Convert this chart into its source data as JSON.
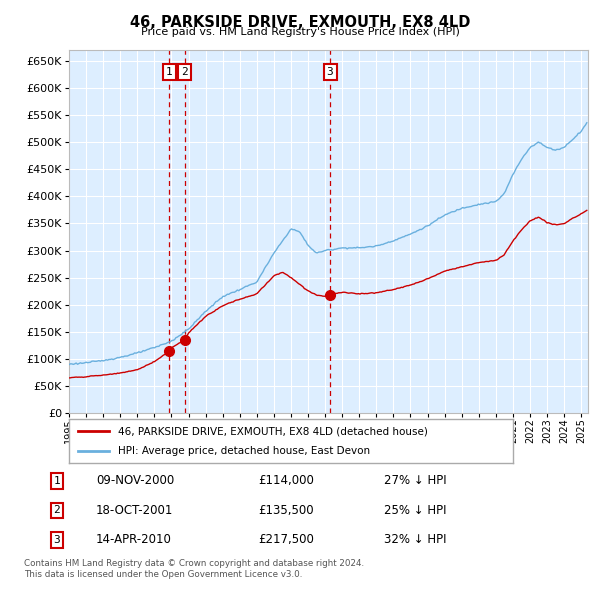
{
  "title": "46, PARKSIDE DRIVE, EXMOUTH, EX8 4LD",
  "subtitle": "Price paid vs. HM Land Registry's House Price Index (HPI)",
  "legend_line1": "46, PARKSIDE DRIVE, EXMOUTH, EX8 4LD (detached house)",
  "legend_line2": "HPI: Average price, detached house, East Devon",
  "footnote1": "Contains HM Land Registry data © Crown copyright and database right 2024.",
  "footnote2": "This data is licensed under the Open Government Licence v3.0.",
  "hpi_color": "#6ab0de",
  "price_color": "#cc0000",
  "vline_color": "#cc0000",
  "dot_color": "#cc0000",
  "plot_bg": "#ddeeff",
  "grid_color": "#ffffff",
  "box_color": "#cc0000",
  "ylim": [
    0,
    670000
  ],
  "xlim_start": 1995.0,
  "xlim_end": 2025.4
}
